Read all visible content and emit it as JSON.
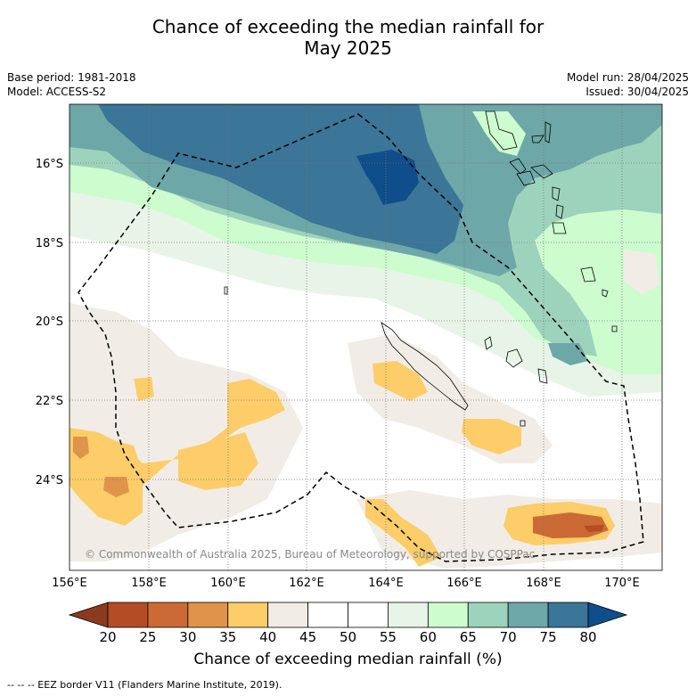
{
  "title_line1": "Chance of exceeding the median rainfall for",
  "title_line2": "May 2025",
  "meta": {
    "base_period": "Base period: 1981-2018",
    "model": "Model: ACCESS-S2",
    "model_run": "Model run: 28/04/2025",
    "issued": "Issued: 30/04/2025"
  },
  "copyright": "© Commonwealth of Australia 2025, Bureau of Meteorology, supported by COSPPac",
  "lat_labels": [
    "16°S",
    "18°S",
    "20°S",
    "22°S",
    "24°S"
  ],
  "lon_labels": [
    "156°E",
    "158°E",
    "160°E",
    "162°E",
    "164°E",
    "166°E",
    "168°E",
    "170°E"
  ],
  "colorbar": {
    "title": "Chance of exceeding median rainfall (%)",
    "ticks": [
      "20",
      "25",
      "30",
      "35",
      "40",
      "45",
      "50",
      "55",
      "60",
      "65",
      "70",
      "75",
      "80"
    ],
    "colors": [
      "#8c3a1e",
      "#b44c25",
      "#cc6a35",
      "#e0934a",
      "#fdcd6a",
      "#f1ede6",
      "#ffffff",
      "#ffffff",
      "#e8f4e7",
      "#cdfccf",
      "#9dd3bc",
      "#6ea7a8",
      "#3b7598",
      "#0f4e8a"
    ]
  },
  "legend_footer": "-- -- -- EEZ border V11 (Flanders Marine Institute, 2019)."
}
